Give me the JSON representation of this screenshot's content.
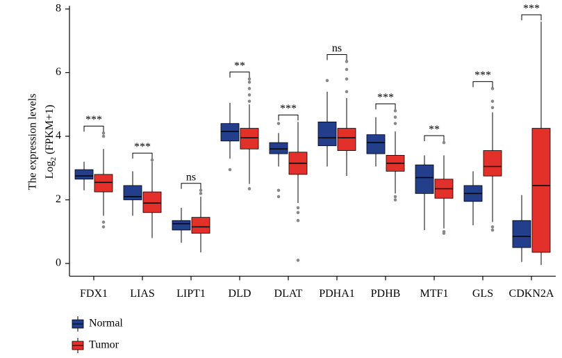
{
  "chart_data": {
    "type": "box",
    "y_label": {
      "line1": "The expression levels",
      "log": "Log",
      "base": "2",
      "unit": "(FPKM+1)"
    },
    "categories": [
      "FDX1",
      "LIAS",
      "LIPT1",
      "DLD",
      "DLAT",
      "PDHA1",
      "PDHB",
      "MTF1",
      "GLS",
      "CDKN2A"
    ],
    "significance": [
      "***",
      "***",
      "ns",
      "**",
      "***",
      "ns",
      "***",
      "**",
      "***",
      "***"
    ],
    "ylim": [
      -0.4,
      8.1
    ],
    "yticks": [
      0,
      2,
      4,
      6,
      8
    ],
    "legend": "bottom-left",
    "series": [
      {
        "name": "Normal",
        "color": "#233f8c",
        "values": [
          {
            "low": 2.3,
            "q1": 2.65,
            "median": 2.75,
            "q3": 2.95,
            "high": 3.2,
            "outliers": []
          },
          {
            "low": 1.5,
            "q1": 2.0,
            "median": 2.1,
            "q3": 2.45,
            "high": 2.9,
            "outliers": []
          },
          {
            "low": 0.65,
            "q1": 1.05,
            "median": 1.25,
            "q3": 1.35,
            "high": 1.75,
            "outliers": []
          },
          {
            "low": 3.3,
            "q1": 3.85,
            "median": 4.15,
            "q3": 4.4,
            "high": 5.05,
            "outliers": [
              2.95
            ]
          },
          {
            "low": 3.05,
            "q1": 3.45,
            "median": 3.6,
            "q3": 3.8,
            "high": 4.1,
            "outliers": [
              2.1,
              2.3,
              4.4
            ]
          },
          {
            "low": 3.05,
            "q1": 3.7,
            "median": 3.95,
            "q3": 4.45,
            "high": 5.4,
            "outliers": [
              5.75
            ]
          },
          {
            "low": 3.05,
            "q1": 3.45,
            "median": 3.8,
            "q3": 4.05,
            "high": 4.6,
            "outliers": []
          },
          {
            "low": 1.05,
            "q1": 2.2,
            "median": 2.7,
            "q3": 3.1,
            "high": 3.4,
            "outliers": []
          },
          {
            "low": 1.2,
            "q1": 1.95,
            "median": 2.2,
            "q3": 2.45,
            "high": 2.9,
            "outliers": []
          },
          {
            "low": 0.05,
            "q1": 0.5,
            "median": 0.85,
            "q3": 1.35,
            "high": 2.15,
            "outliers": []
          }
        ]
      },
      {
        "name": "Tumor",
        "color": "#e3302a",
        "values": [
          {
            "low": 1.5,
            "q1": 2.25,
            "median": 2.55,
            "q3": 2.8,
            "high": 3.6,
            "outliers": [
              1.15,
              1.3,
              4.0,
              4.1
            ]
          },
          {
            "low": 0.8,
            "q1": 1.6,
            "median": 1.9,
            "q3": 2.25,
            "high": 3.2,
            "outliers": [
              3.25
            ]
          },
          {
            "low": 0.35,
            "q1": 0.95,
            "median": 1.15,
            "q3": 1.45,
            "high": 2.1,
            "outliers": [
              2.2,
              2.3
            ]
          },
          {
            "low": 2.5,
            "q1": 3.6,
            "median": 3.95,
            "q3": 4.25,
            "high": 5.0,
            "outliers": [
              2.35,
              5.1,
              5.3,
              5.5,
              5.7,
              5.8
            ]
          },
          {
            "low": 1.9,
            "q1": 2.8,
            "median": 3.15,
            "q3": 3.5,
            "high": 4.45,
            "outliers": [
              0.1,
              1.35,
              1.6,
              1.75
            ]
          },
          {
            "low": 2.75,
            "q1": 3.55,
            "median": 3.95,
            "q3": 4.25,
            "high": 5.2,
            "outliers": [
              5.4,
              5.8,
              6.1,
              6.35
            ]
          },
          {
            "low": 2.2,
            "q1": 2.9,
            "median": 3.15,
            "q3": 3.4,
            "high": 4.15,
            "outliers": [
              2.0,
              2.1,
              4.4,
              4.6,
              4.8
            ]
          },
          {
            "low": 1.1,
            "q1": 2.05,
            "median": 2.35,
            "q3": 2.65,
            "high": 3.4,
            "outliers": [
              0.95,
              1.0,
              3.8
            ]
          },
          {
            "low": 1.3,
            "q1": 2.75,
            "median": 3.05,
            "q3": 3.55,
            "high": 4.75,
            "outliers": [
              1.05,
              1.15,
              4.9,
              5.1,
              5.5
            ]
          },
          {
            "low": -0.05,
            "q1": 0.35,
            "median": 2.45,
            "q3": 4.25,
            "high": 7.6,
            "outliers": []
          }
        ]
      }
    ]
  }
}
